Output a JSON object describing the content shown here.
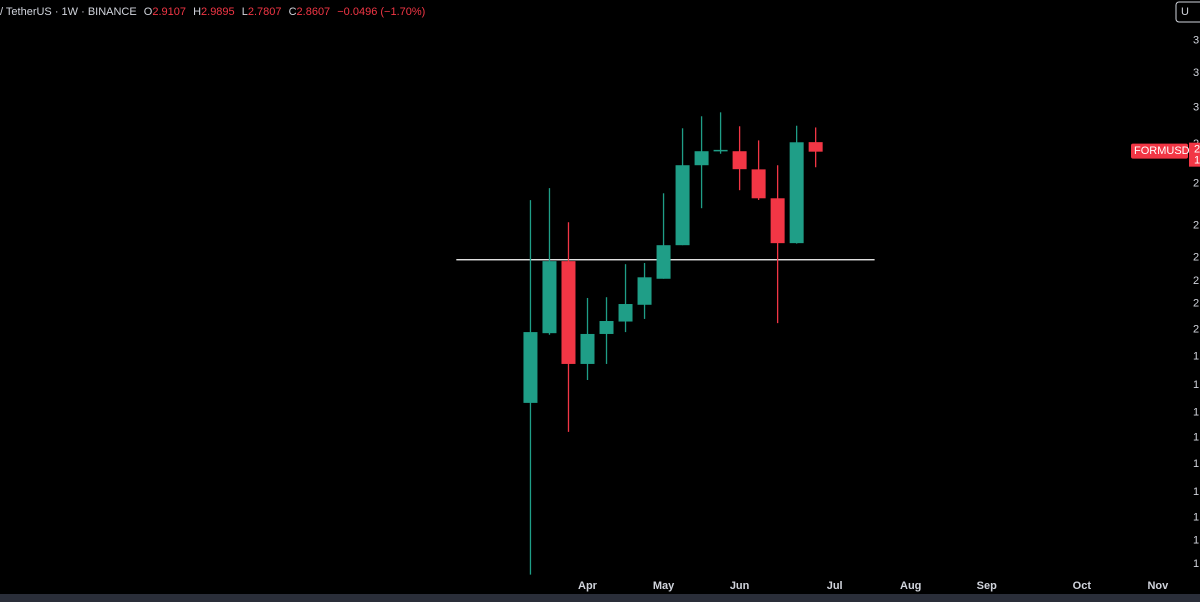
{
  "header": {
    "symbol": "/ TetherUS · 1W · BINANCE",
    "o_label": "O",
    "h_label": "H",
    "l_label": "L",
    "c_label": "C",
    "change": "−0.0496 (−1.70%)",
    "corner": "U"
  },
  "chart_data": {
    "type": "candlestick",
    "x": [
      0,
      1,
      2,
      3,
      4,
      5,
      6,
      7,
      8,
      9,
      10,
      11,
      12,
      13,
      14,
      15
    ],
    "open": [
      1.811,
      2.056,
      2.344,
      1.944,
      2.053,
      2.1,
      2.165,
      2.27,
      2.413,
      2.791,
      2.863,
      2.863,
      2.77,
      2.628,
      2.422,
      2.9107
    ],
    "high": [
      2.619,
      2.677,
      2.516,
      2.192,
      2.195,
      2.331,
      2.336,
      2.652,
      2.985,
      3.051,
      3.073,
      2.996,
      2.92,
      2.791,
      2.999,
      2.9895
    ],
    "low": [
      1.325,
      2.05,
      1.718,
      1.888,
      1.944,
      2.06,
      2.11,
      2.27,
      2.413,
      2.581,
      2.85,
      2.667,
      2.62,
      2.094,
      2.42,
      2.7807
    ],
    "close": [
      2.06,
      2.344,
      1.944,
      2.053,
      2.102,
      2.168,
      2.276,
      2.413,
      2.791,
      2.863,
      2.87,
      2.771,
      2.628,
      2.422,
      2.91,
      2.8607
    ],
    "up_color": "#1f9e87",
    "down_color": "#f23645",
    "xlim": [
      -27.9,
      33.9
    ],
    "xticks": [
      {
        "value": 3,
        "label": "Apr"
      },
      {
        "value": 7,
        "label": "May"
      },
      {
        "value": 11,
        "label": "Jun"
      },
      {
        "value": 16,
        "label": "Jul"
      },
      {
        "value": 20,
        "label": "Aug"
      },
      {
        "value": 24,
        "label": "Sep"
      },
      {
        "value": 29,
        "label": "Oct"
      },
      {
        "value": 33,
        "label": "Nov"
      }
    ],
    "ylim": [
      1.279,
      3.77
    ],
    "log_scale": true,
    "yticks": [
      {
        "value": 3.5,
        "label": "3"
      },
      {
        "value": 3.3,
        "label": "3"
      },
      {
        "value": 3.1,
        "label": "3"
      },
      {
        "value": 2.9,
        "label": "2"
      },
      {
        "value": 2.7,
        "label": "2"
      },
      {
        "value": 2.5,
        "label": "2"
      },
      {
        "value": 2.36,
        "label": "2"
      },
      {
        "value": 2.26,
        "label": "2"
      },
      {
        "value": 2.17,
        "label": "2"
      },
      {
        "value": 2.07,
        "label": "2"
      },
      {
        "value": 1.97,
        "label": "1"
      },
      {
        "value": 1.87,
        "label": "1"
      },
      {
        "value": 1.78,
        "label": "1"
      },
      {
        "value": 1.7,
        "label": "1"
      },
      {
        "value": 1.62,
        "label": "1"
      },
      {
        "value": 1.54,
        "label": "1"
      },
      {
        "value": 1.47,
        "label": "1"
      },
      {
        "value": 1.41,
        "label": "1"
      },
      {
        "value": 1.35,
        "label": "1"
      }
    ],
    "hlines": [
      {
        "value": 2.35,
        "x": [
          -3.9,
          18.1
        ],
        "color": "#ffffff"
      }
    ],
    "price_tag": {
      "label": "FORMUSDT",
      "texts": [
        "2",
        "1"
      ]
    }
  }
}
